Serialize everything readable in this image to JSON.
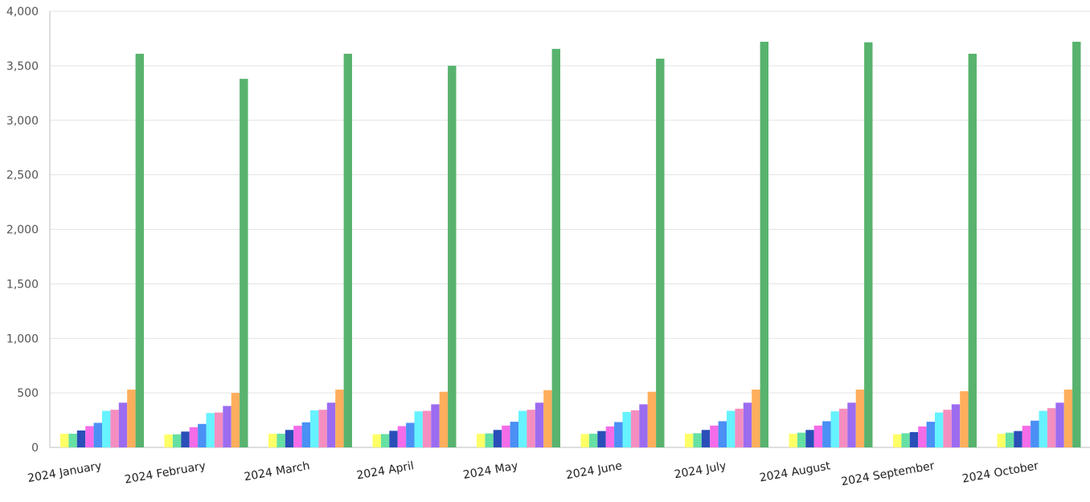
{
  "chart_data": {
    "type": "bar",
    "title": "",
    "xlabel": "",
    "ylabel": "",
    "ylim": [
      0,
      4000
    ],
    "yticks": [
      0,
      500,
      1000,
      1500,
      2000,
      2500,
      3000,
      3500,
      4000
    ],
    "ytick_labels": [
      "0",
      "500",
      "1,000",
      "1,500",
      "2,000",
      "2,500",
      "3,000",
      "3,500",
      "4,000"
    ],
    "grid": true,
    "legend": "none",
    "categories": [
      "2024  January",
      "2024  February",
      "2024  March",
      "2024  April",
      "2024  May",
      "2024  June",
      "2024  July",
      "2024  August",
      "2024  September",
      "2024  October"
    ],
    "series": [
      {
        "color": "#ffff66",
        "values": [
          125,
          118,
          125,
          120,
          125,
          122,
          125,
          125,
          120,
          125
        ]
      },
      {
        "color": "#66e0a3",
        "values": [
          125,
          120,
          125,
          122,
          128,
          125,
          130,
          135,
          130,
          135
        ]
      },
      {
        "color": "#2a4fb8",
        "values": [
          155,
          145,
          160,
          152,
          160,
          150,
          160,
          160,
          140,
          150
        ]
      },
      {
        "color": "#f46ce8",
        "values": [
          195,
          185,
          198,
          195,
          200,
          192,
          200,
          200,
          192,
          198
        ]
      },
      {
        "color": "#4a90f5",
        "values": [
          225,
          215,
          230,
          225,
          235,
          232,
          240,
          240,
          235,
          245
        ]
      },
      {
        "color": "#66f2ff",
        "values": [
          335,
          315,
          340,
          330,
          335,
          325,
          335,
          330,
          320,
          335
        ]
      },
      {
        "color": "#f58ec0",
        "values": [
          345,
          320,
          345,
          335,
          345,
          340,
          355,
          355,
          345,
          360
        ]
      },
      {
        "color": "#9b6cf0",
        "values": [
          410,
          380,
          410,
          395,
          410,
          395,
          410,
          410,
          395,
          410
        ]
      },
      {
        "color": "#ffae5c",
        "values": [
          530,
          500,
          530,
          510,
          525,
          510,
          530,
          530,
          515,
          530
        ]
      },
      {
        "color": "#58b36e",
        "values": [
          3610,
          3380,
          3610,
          3500,
          3655,
          3565,
          3720,
          3715,
          3610,
          3720
        ]
      }
    ]
  }
}
